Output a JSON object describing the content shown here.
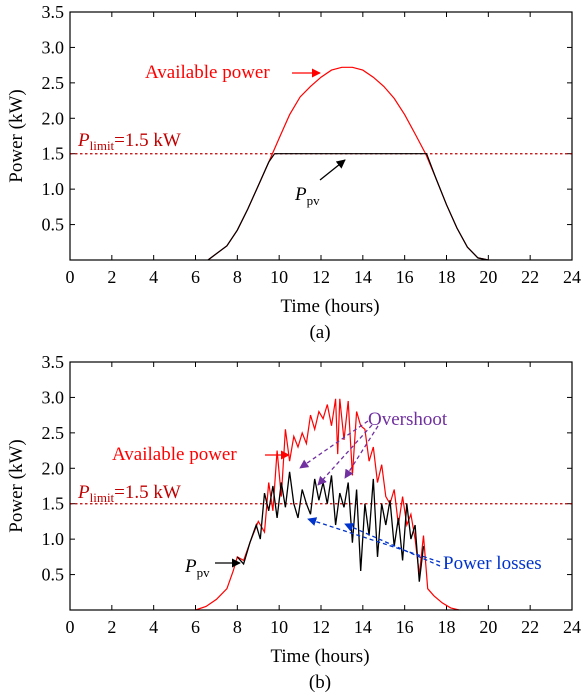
{
  "chart_data": [
    {
      "type": "line",
      "panel_label": "(a)",
      "xlabel": "Time (hours)",
      "ylabel": "Power (kW)",
      "xlim": [
        0,
        24
      ],
      "ylim": [
        0,
        3.5
      ],
      "xticks": [
        "0",
        "2",
        "4",
        "6",
        "8",
        "10",
        "12",
        "14",
        "16",
        "18",
        "20",
        "22",
        "24"
      ],
      "yticks": [
        "0.5",
        "1.0",
        "1.5",
        "2.0",
        "2.5",
        "3.0",
        "3.5"
      ],
      "grid": false,
      "limit": {
        "label_main": "P",
        "label_sub": "limit",
        "label_rest": "=1.5 kW",
        "value": 1.5,
        "color": "#c00000"
      },
      "series": [
        {
          "name": "Available power",
          "color": "#ff0000",
          "x": [
            6.6,
            7.5,
            8.0,
            8.5,
            9.0,
            9.5,
            10.0,
            10.5,
            11.0,
            11.5,
            12.0,
            12.5,
            13.0,
            13.5,
            14.0,
            14.5,
            15.0,
            15.5,
            16.0,
            16.5,
            17.0,
            17.5,
            18.0,
            18.5,
            19.0,
            19.5,
            20.0
          ],
          "y": [
            0,
            0.2,
            0.42,
            0.72,
            1.05,
            1.38,
            1.72,
            2.05,
            2.3,
            2.45,
            2.58,
            2.68,
            2.72,
            2.72,
            2.68,
            2.58,
            2.45,
            2.28,
            2.05,
            1.78,
            1.5,
            1.15,
            0.78,
            0.45,
            0.18,
            0.03,
            0
          ]
        },
        {
          "name": "P_pv",
          "color": "#000000",
          "x": [
            6.6,
            7.5,
            8.0,
            8.5,
            9.0,
            9.5,
            9.78,
            10.5,
            12.0,
            14.0,
            16.0,
            17.05,
            17.5,
            18.0,
            18.5,
            19.0,
            19.5,
            20.0
          ],
          "y": [
            0,
            0.2,
            0.42,
            0.72,
            1.05,
            1.38,
            1.5,
            1.5,
            1.5,
            1.5,
            1.5,
            1.5,
            1.15,
            0.78,
            0.45,
            0.18,
            0.03,
            0
          ]
        }
      ],
      "annotations": [
        {
          "text": "Available power",
          "color": "#ff0000"
        },
        {
          "text_main": "P",
          "text_sub": "pv",
          "color": "#000000"
        }
      ]
    },
    {
      "type": "line",
      "panel_label": "(b)",
      "xlabel": "Time (hours)",
      "ylabel": "Power (kW)",
      "xlim": [
        0,
        24
      ],
      "ylim": [
        0,
        3.5
      ],
      "xticks": [
        "0",
        "2",
        "4",
        "6",
        "8",
        "10",
        "12",
        "14",
        "16",
        "18",
        "20",
        "22",
        "24"
      ],
      "yticks": [
        "0.5",
        "1.0",
        "1.5",
        "2.0",
        "2.5",
        "3.0",
        "3.5"
      ],
      "grid": false,
      "limit": {
        "label_main": "P",
        "label_sub": "limit",
        "label_rest": "=1.5 kW",
        "value": 1.5,
        "color": "#c00000"
      },
      "series": [
        {
          "name": "Available power",
          "color": "#ff0000",
          "x": [
            6.0,
            6.5,
            7.0,
            7.5,
            7.8,
            8.0,
            8.3,
            8.6,
            9.0,
            9.3,
            9.5,
            9.7,
            9.9,
            10.1,
            10.3,
            10.5,
            10.7,
            10.9,
            11.1,
            11.3,
            11.5,
            11.7,
            11.9,
            12.1,
            12.3,
            12.5,
            12.7,
            12.8,
            12.9,
            13.1,
            13.3,
            13.5,
            13.7,
            13.9,
            14.1,
            14.3,
            14.5,
            14.7,
            14.9,
            15.1,
            15.3,
            15.5,
            15.7,
            15.9,
            16.1,
            16.3,
            16.5,
            16.7,
            16.9,
            17.1,
            17.4,
            17.8,
            18.2,
            18.6
          ],
          "y": [
            0,
            0.05,
            0.15,
            0.3,
            0.55,
            0.75,
            0.7,
            0.95,
            1.25,
            1.1,
            1.8,
            1.4,
            2.25,
            1.6,
            2.55,
            2.1,
            2.45,
            2.3,
            2.5,
            2.35,
            2.75,
            2.55,
            2.8,
            2.7,
            2.9,
            2.6,
            2.98,
            2.2,
            2.98,
            2.4,
            2.95,
            1.9,
            2.8,
            2.6,
            2.55,
            2.1,
            2.3,
            1.8,
            2.05,
            1.6,
            1.5,
            1.7,
            1.2,
            1.6,
            1.2,
            1.35,
            1.0,
            0.5,
            1.05,
            0.3,
            0.2,
            0.1,
            0.03,
            0
          ]
        },
        {
          "name": "P_pv",
          "color": "#000000",
          "x": [
            8.0,
            8.3,
            8.6,
            8.9,
            9.1,
            9.3,
            9.5,
            9.7,
            9.9,
            10.1,
            10.3,
            10.5,
            10.7,
            10.9,
            11.1,
            11.3,
            11.5,
            11.7,
            11.9,
            12.1,
            12.3,
            12.5,
            12.7,
            12.9,
            13.1,
            13.3,
            13.5,
            13.7,
            13.9,
            14.1,
            14.3,
            14.5,
            14.7,
            14.9,
            15.1,
            15.3,
            15.5,
            15.7,
            15.9,
            16.1,
            16.3,
            16.5,
            16.7,
            16.9
          ],
          "y": [
            0.75,
            0.65,
            0.95,
            1.2,
            1.0,
            1.65,
            1.4,
            1.75,
            1.3,
            1.8,
            1.45,
            1.95,
            1.5,
            1.3,
            1.7,
            1.5,
            1.35,
            1.85,
            1.55,
            1.8,
            1.5,
            1.9,
            1.2,
            1.65,
            1.45,
            1.8,
            0.95,
            1.7,
            0.55,
            1.5,
            1.05,
            1.85,
            0.75,
            1.5,
            1.2,
            1.55,
            0.9,
            1.3,
            0.7,
            1.5,
            1.0,
            1.2,
            0.4,
            0.9
          ]
        }
      ],
      "annotations": [
        {
          "text": "Available power",
          "color": "#ff0000"
        },
        {
          "text": "Overshoot",
          "color": "#7030a0"
        },
        {
          "text": "Power losses",
          "color": "#0033cc"
        },
        {
          "text_main": "P",
          "text_sub": "pv",
          "color": "#000000"
        }
      ]
    }
  ]
}
